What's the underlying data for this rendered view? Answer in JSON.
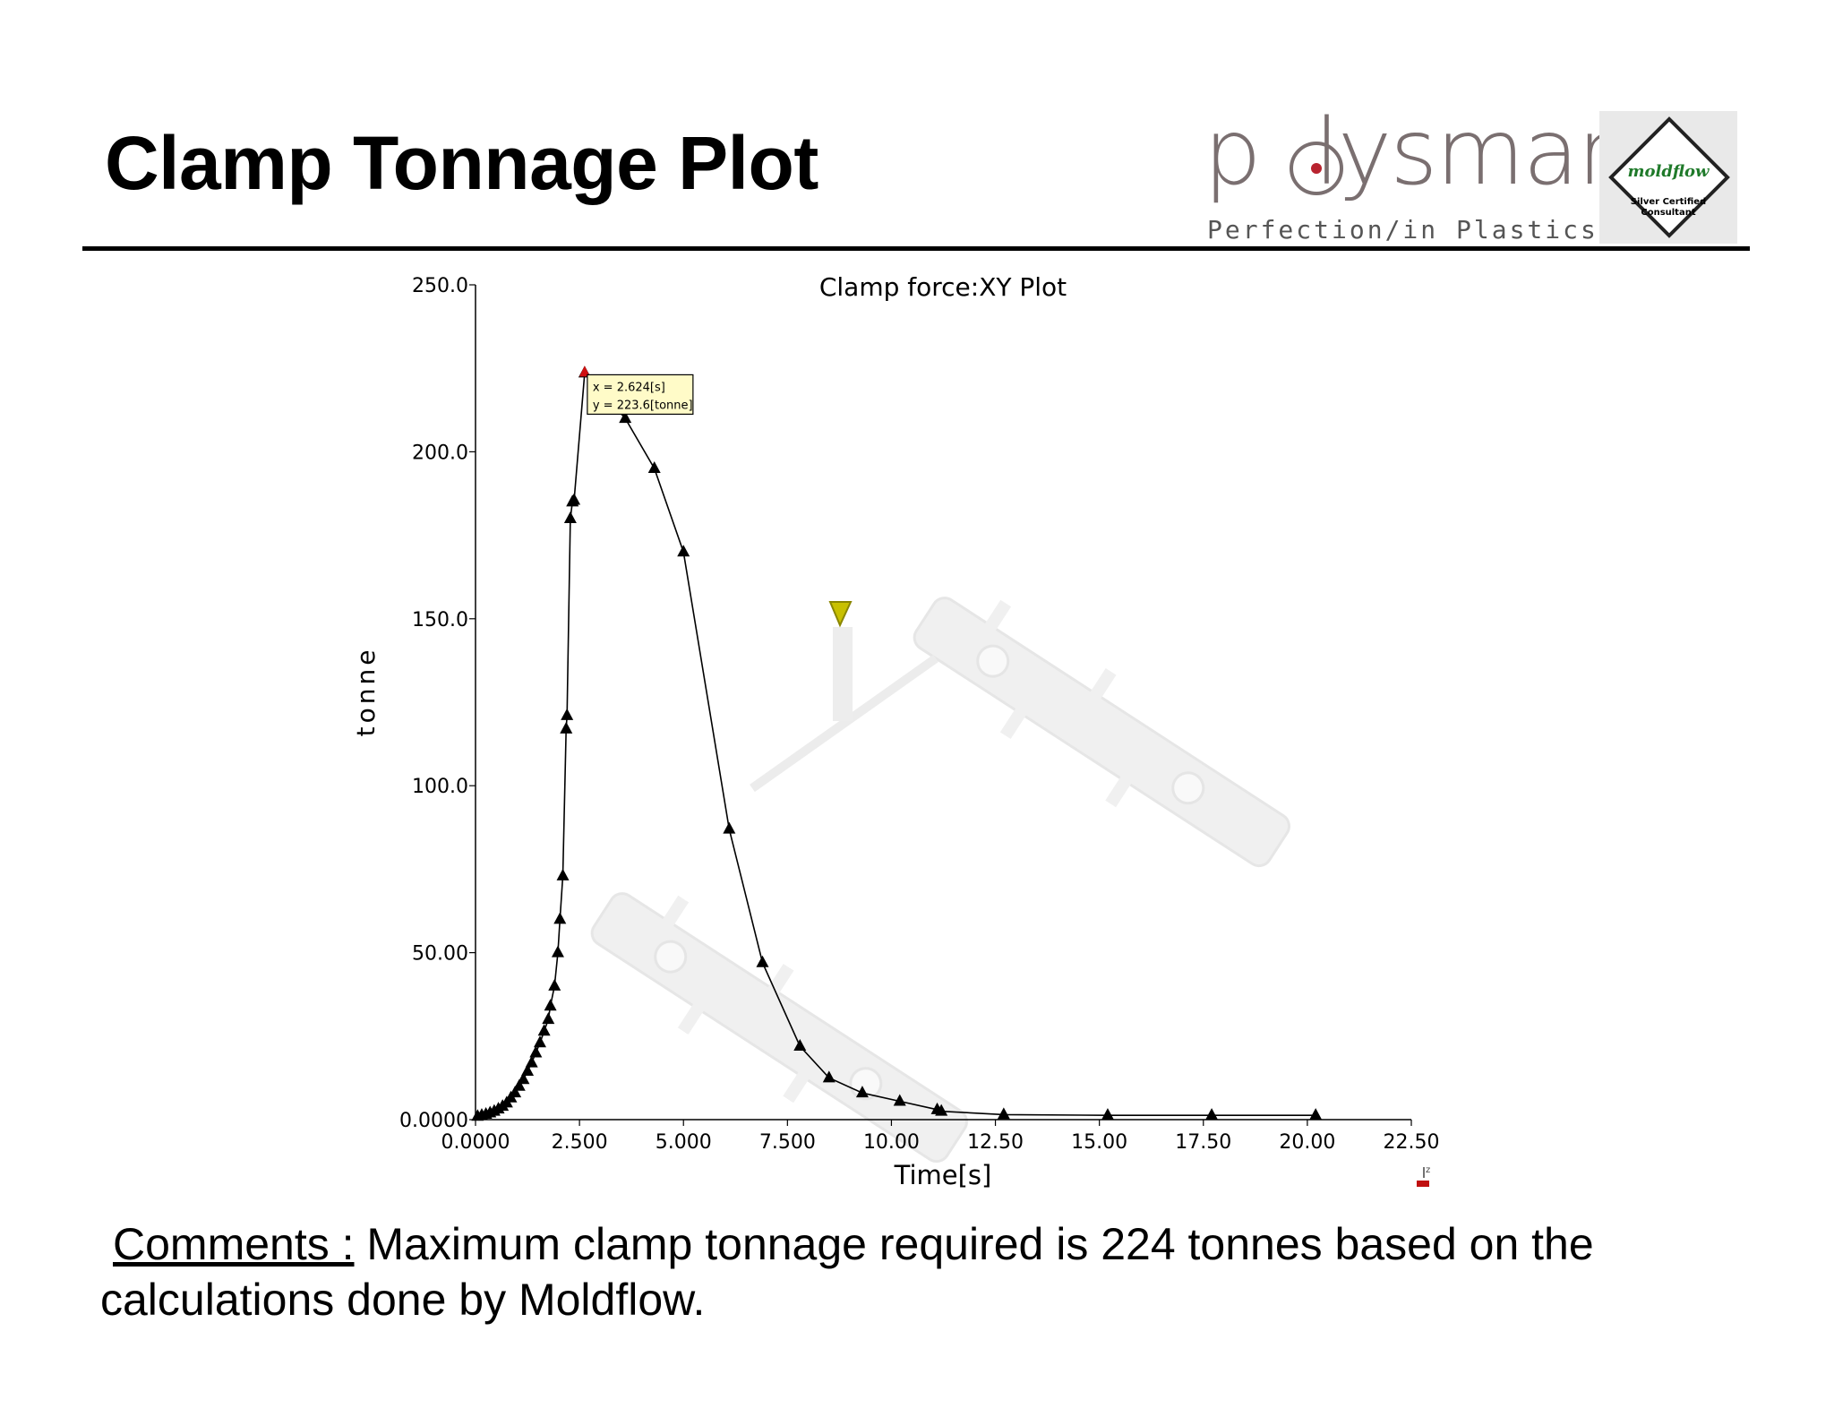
{
  "slide": {
    "title": "Clamp Tonnage Plot",
    "comments_label": "Comments :",
    "comments_text": " Maximum clamp tonnage required is 224 tonnes based on the calculations done by Moldflow."
  },
  "logo": {
    "word": "polysmart",
    "tagline": "Perfection/in Plastics",
    "badge_brand": "moldflow",
    "badge_line1": "Silver Certified",
    "badge_line2": "Consultant"
  },
  "colors": {
    "series": "#000000",
    "badge_brand": "#1f7a2a",
    "logo_accent": "#b8232f",
    "tooltip_bg": "#fffbc8"
  },
  "chart_data": {
    "type": "line",
    "title": "Clamp force:XY Plot",
    "xlabel": "Time[s]",
    "ylabel": "tonne",
    "xlim": [
      0,
      22.5
    ],
    "ylim": [
      0,
      250
    ],
    "xticks": [
      "0.0000",
      "2.500",
      "5.000",
      "7.500",
      "10.00",
      "12.50",
      "15.00",
      "17.50",
      "20.00",
      "22.50"
    ],
    "yticks": [
      "0.0000",
      "50.00",
      "100.0",
      "150.0",
      "200.0",
      "250.0"
    ],
    "grid": false,
    "marker": "triangle",
    "series": [
      {
        "points": [
          [
            0.05,
            1.0
          ],
          [
            0.15,
            1.3
          ],
          [
            0.25,
            1.6
          ],
          [
            0.35,
            2.0
          ],
          [
            0.45,
            2.5
          ],
          [
            0.55,
            3.2
          ],
          [
            0.65,
            4.0
          ],
          [
            0.75,
            5.0
          ],
          [
            0.85,
            6.5
          ],
          [
            0.95,
            8.0
          ],
          [
            1.05,
            10.0
          ],
          [
            1.15,
            12.0
          ],
          [
            1.25,
            14.5
          ],
          [
            1.35,
            17.0
          ],
          [
            1.45,
            20.0
          ],
          [
            1.55,
            23.0
          ],
          [
            1.65,
            26.5
          ],
          [
            1.75,
            30.0
          ],
          [
            1.8,
            34.0
          ],
          [
            1.9,
            40.0
          ],
          [
            1.98,
            50.0
          ],
          [
            2.03,
            60.0
          ],
          [
            2.1,
            73.0
          ],
          [
            2.18,
            117.0
          ],
          [
            2.2,
            121.0
          ],
          [
            2.28,
            180.0
          ],
          [
            2.33,
            185.0
          ],
          [
            2.37,
            185.5
          ],
          [
            2.624,
            223.6
          ],
          [
            3.6,
            210.0
          ],
          [
            4.3,
            195.0
          ],
          [
            5.0,
            170.0
          ],
          [
            6.1,
            87.0
          ],
          [
            6.9,
            47.0
          ],
          [
            7.8,
            22.0
          ],
          [
            8.5,
            12.5
          ],
          [
            9.3,
            8.0
          ],
          [
            10.2,
            5.5
          ],
          [
            11.1,
            3.0
          ],
          [
            11.2,
            2.5
          ],
          [
            12.7,
            1.5
          ],
          [
            15.2,
            1.3
          ],
          [
            17.7,
            1.3
          ],
          [
            20.2,
            1.3
          ]
        ]
      }
    ],
    "annotation": {
      "x_text": "x = 2.624[s]",
      "y_text": "y = 223.6[tonne]",
      "x": 2.624,
      "y": 223.6
    }
  }
}
